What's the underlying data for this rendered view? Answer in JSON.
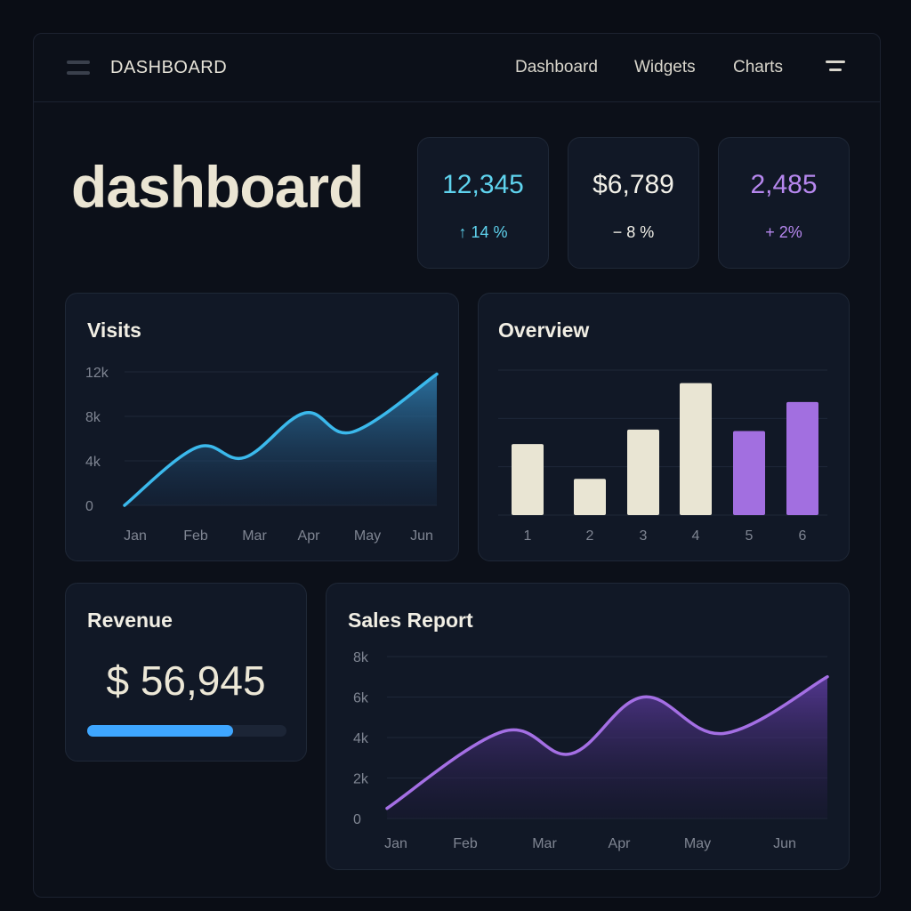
{
  "header": {
    "app_title": "DASHBOARD",
    "nav": [
      "Dashboard",
      "Widgets",
      "Charts"
    ]
  },
  "page": {
    "title": "dashboard"
  },
  "stats": [
    {
      "value": "12,345",
      "delta": "↑ 14 %",
      "color": "#5fd3ee"
    },
    {
      "value": "$6,789",
      "delta": "− 8 %",
      "color": "#f2f0e8"
    },
    {
      "value": "2,485",
      "delta": "+ 2%",
      "color": "#b687ee"
    }
  ],
  "revenue": {
    "title": "Revenue",
    "value": "$ 56,945",
    "progress": 0.73,
    "color": "#3ea6ff"
  },
  "chart_data": [
    {
      "id": "visits",
      "type": "area",
      "title": "Visits",
      "categories": [
        "Jan",
        "Feb",
        "Mar",
        "Apr",
        "May",
        "Jun"
      ],
      "x": [
        0,
        1.2,
        2.0,
        3.0,
        3.8,
        5.2
      ],
      "values": [
        0,
        5200,
        4300,
        8300,
        6600,
        11800
      ],
      "yticks": [
        "12k",
        "8k",
        "4k",
        "0"
      ],
      "ylim": [
        0,
        12000
      ],
      "color": "#3bb9ec"
    },
    {
      "id": "overview",
      "type": "bar",
      "title": "Overview",
      "categories": [
        "1",
        "2",
        "3",
        "4",
        "5",
        "6"
      ],
      "values": [
        4.9,
        2.5,
        5.9,
        9.1,
        5.8,
        7.8
      ],
      "ylim": [
        0,
        10
      ],
      "colors": [
        "#e9e5d3",
        "#e9e5d3",
        "#e9e5d3",
        "#e9e5d3",
        "#a26fe0",
        "#a26fe0"
      ]
    },
    {
      "id": "sales",
      "type": "area",
      "title": "Sales Report",
      "categories": [
        "Jan",
        "Feb",
        "Mar",
        "Apr",
        "May",
        "Jun"
      ],
      "x": [
        0,
        1.45,
        2.3,
        3.2,
        4.2,
        5.5
      ],
      "values": [
        500,
        4300,
        3200,
        6000,
        4200,
        7000
      ],
      "yticks": [
        "8k",
        "6k",
        "4k",
        "2k",
        "0"
      ],
      "ylim": [
        0,
        8000
      ],
      "color": "#a46fe4"
    }
  ]
}
